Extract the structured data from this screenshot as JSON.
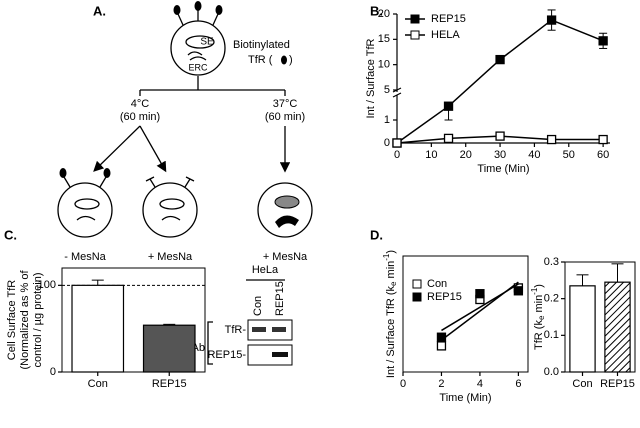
{
  "panel_labels": [
    "A.",
    "B.",
    "C.",
    "D."
  ],
  "diagram": {
    "se": "SE",
    "erc": "ERC",
    "biotinylated": "Biotinylated",
    "tfr_open": "TfR (",
    "tfr_close": ")",
    "cold_temp": "4°C",
    "cold_time": "(60 min)",
    "warm_temp": "37°C",
    "warm_time": "(60 min)",
    "cells": [
      "- MesNa",
      "+ MesNa",
      "+ MesNa"
    ]
  },
  "blot": {
    "cell_line": "HeLa",
    "lanes": [
      "Con",
      "REP15"
    ],
    "bands": [
      "TfR-",
      "REP15-"
    ],
    "antibody": "Wn Ab"
  },
  "chart_data": [
    {
      "type": "line",
      "ylabel": "Int / Surface TfR",
      "xlabel": "Time (Min)",
      "x": [
        0,
        15,
        30,
        45,
        60
      ],
      "xlim": [
        0,
        62
      ],
      "xticks": [
        0,
        10,
        20,
        30,
        40,
        50,
        60
      ],
      "ylim": [
        0,
        20
      ],
      "ybreak": [
        2,
        5
      ],
      "yticks": [
        0,
        1,
        5,
        10,
        15,
        20
      ],
      "series": [
        {
          "name": "REP15",
          "color": "#000000",
          "fill": "#000000",
          "values": [
            0,
            1.6,
            11,
            18.8,
            14.7
          ],
          "errors": [
            0,
            0.6,
            0,
            2,
            1.5
          ]
        },
        {
          "name": "HELA",
          "color": "#000000",
          "fill": "#ffffff",
          "values": [
            0,
            0.2,
            0.3,
            0.15,
            0.15
          ],
          "errors": [
            0,
            0.05,
            0.05,
            0.03,
            0.03
          ]
        }
      ]
    },
    {
      "type": "bar",
      "ylabel": [
        "Cell Surface TfR",
        "(Normalized as % of",
        "control / µg protein)"
      ],
      "categories": [
        "Con",
        "REP15"
      ],
      "values": [
        100,
        54
      ],
      "errors": [
        6,
        1
      ],
      "colors": [
        "#ffffff",
        "#555555"
      ],
      "hatch": [
        false,
        false
      ],
      "ylim": [
        0,
        120
      ],
      "yticks": [
        0,
        100
      ],
      "reference_line": 100
    },
    {
      "type": "scatter",
      "ylabel": [
        "Int / Surface TfR (k",
        "e",
        " min",
        "-1",
        ")"
      ],
      "xlabel": "Time (Min)",
      "x": [
        2,
        4,
        6
      ],
      "xlim": [
        0,
        6.5
      ],
      "xticks": [
        0,
        2,
        4,
        6
      ],
      "ylim": [
        0,
        2
      ],
      "series": [
        {
          "name": "Con",
          "color": "#000000",
          "fill": "#ffffff",
          "values": [
            0.45,
            1.25,
            1.45
          ]
        },
        {
          "name": "REP15",
          "color": "#000000",
          "fill": "#000000",
          "values": [
            0.6,
            1.35,
            1.4
          ]
        }
      ]
    },
    {
      "type": "bar",
      "ylabel": [
        "TfR (k",
        "e",
        " min",
        "-1",
        ")"
      ],
      "categories": [
        "Con",
        "REP15"
      ],
      "values": [
        0.235,
        0.245
      ],
      "errors": [
        0.03,
        0.05
      ],
      "colors": [
        "#ffffff",
        "#ffffff"
      ],
      "hatch": [
        false,
        true
      ],
      "ylim": [
        0,
        0.3
      ],
      "yticks": [
        {
          "value": 0,
          "label": "0.0"
        },
        0.1,
        0.2,
        0.3
      ]
    }
  ]
}
